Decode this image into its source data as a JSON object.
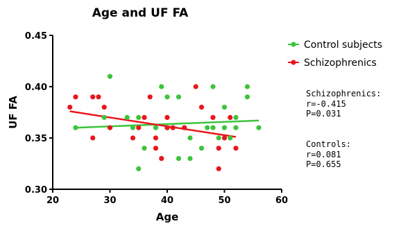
{
  "chart_data": {
    "type": "scatter",
    "title": "Age and UF FA",
    "xlabel": "Age",
    "ylabel": "UF FA",
    "xlim": [
      20,
      60
    ],
    "ylim": [
      0.3,
      0.45
    ],
    "xticks": [
      20,
      30,
      40,
      50,
      60
    ],
    "xtick_labels": [
      "20",
      "30",
      "40",
      "50",
      "60"
    ],
    "yticks": [
      0.3,
      0.35,
      0.4,
      0.45
    ],
    "ytick_labels": [
      "0.30",
      "0.35",
      "0.40",
      "0.45"
    ],
    "grid": false,
    "legend_position": "top-right",
    "series": [
      {
        "name": "Control subjects",
        "color": "#3cc43c",
        "points": [
          [
            24,
            0.36
          ],
          [
            29,
            0.37
          ],
          [
            30,
            0.41
          ],
          [
            33,
            0.37
          ],
          [
            34,
            0.36
          ],
          [
            35,
            0.37
          ],
          [
            35,
            0.32
          ],
          [
            36,
            0.34
          ],
          [
            38,
            0.36
          ],
          [
            39,
            0.4
          ],
          [
            40,
            0.36
          ],
          [
            40,
            0.39
          ],
          [
            41,
            0.36
          ],
          [
            42,
            0.39
          ],
          [
            42,
            0.33
          ],
          [
            43,
            0.36
          ],
          [
            44,
            0.33
          ],
          [
            44,
            0.35
          ],
          [
            46,
            0.34
          ],
          [
            47,
            0.36
          ],
          [
            48,
            0.36
          ],
          [
            48,
            0.4
          ],
          [
            49,
            0.35
          ],
          [
            50,
            0.38
          ],
          [
            50,
            0.36
          ],
          [
            51,
            0.35
          ],
          [
            52,
            0.36
          ],
          [
            52,
            0.37
          ],
          [
            54,
            0.39
          ],
          [
            54,
            0.4
          ],
          [
            56,
            0.36
          ]
        ],
        "regression": {
          "x": [
            24,
            56
          ],
          "y": [
            0.36,
            0.367
          ]
        }
      },
      {
        "name": "Schizophrenics",
        "color": "#e8161b",
        "points": [
          [
            23,
            0.38
          ],
          [
            24,
            0.39
          ],
          [
            27,
            0.39
          ],
          [
            27,
            0.35
          ],
          [
            28,
            0.39
          ],
          [
            29,
            0.38
          ],
          [
            30,
            0.36
          ],
          [
            34,
            0.35
          ],
          [
            35,
            0.36
          ],
          [
            36,
            0.37
          ],
          [
            37,
            0.39
          ],
          [
            38,
            0.34
          ],
          [
            38,
            0.35
          ],
          [
            39,
            0.33
          ],
          [
            40,
            0.36
          ],
          [
            40,
            0.37
          ],
          [
            41,
            0.36
          ],
          [
            43,
            0.36
          ],
          [
            45,
            0.4
          ],
          [
            46,
            0.38
          ],
          [
            48,
            0.37
          ],
          [
            49,
            0.32
          ],
          [
            49,
            0.34
          ],
          [
            50,
            0.35
          ],
          [
            51,
            0.37
          ],
          [
            52,
            0.34
          ]
        ],
        "regression": {
          "x": [
            23,
            52
          ],
          "y": [
            0.376,
            0.351
          ]
        }
      }
    ],
    "annotations": [
      {
        "lines": [
          "Schizophrenics:",
          "r=-0.415",
          "P=0.031"
        ]
      },
      {
        "lines": [
          "Controls:",
          "r=0.081",
          "P=0.655"
        ]
      }
    ]
  }
}
